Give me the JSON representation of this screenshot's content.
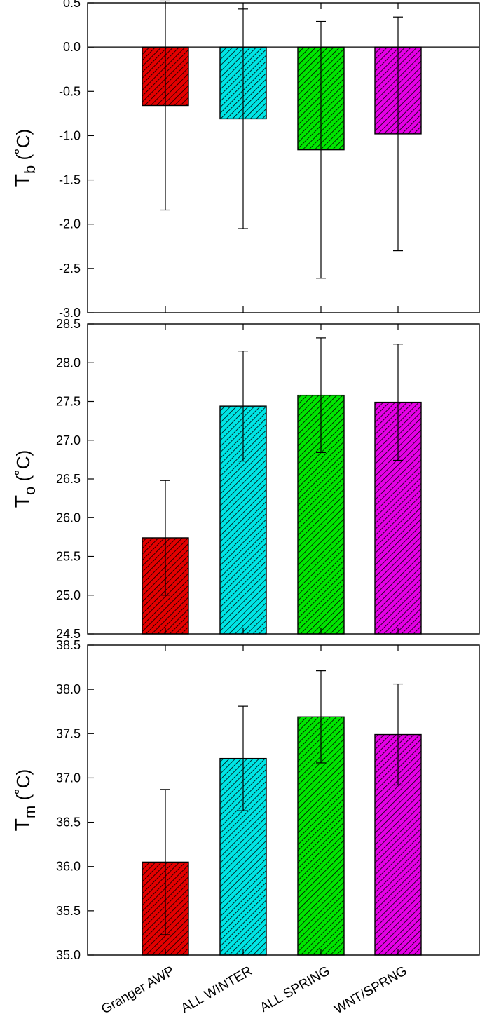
{
  "chart_data": [
    {
      "type": "bar",
      "categories": [
        "Granger AWP",
        "ALL WINTER",
        "ALL SPRING",
        "WNT/SPRNG"
      ],
      "colors": [
        "#e30000",
        "#00e5e5",
        "#00e600",
        "#e600e6"
      ],
      "ylabel_main": "T",
      "ylabel_sub": "b",
      "ylabel_unit": "(˚C)",
      "ylim": [
        -3.0,
        0.5
      ],
      "yticks": [
        "0.5",
        "0.0",
        "-0.5",
        "-1.0",
        "-1.5",
        "-2.0",
        "-2.5",
        "-3.0"
      ],
      "values": [
        -0.66,
        -0.81,
        -1.16,
        -0.98
      ],
      "err_upper": [
        0.52,
        0.43,
        0.29,
        0.34
      ],
      "err_lower": [
        -1.84,
        -2.05,
        -2.61,
        -2.3
      ],
      "zero_line": true
    },
    {
      "type": "bar",
      "categories": [
        "Granger AWP",
        "ALL WINTER",
        "ALL SPRING",
        "WNT/SPRNG"
      ],
      "colors": [
        "#e30000",
        "#00e5e5",
        "#00e600",
        "#e600e6"
      ],
      "ylabel_main": "T",
      "ylabel_sub": "o",
      "ylabel_unit": "(˚C)",
      "ylim": [
        24.5,
        28.5
      ],
      "yticks": [
        "28.5",
        "28.0",
        "27.5",
        "27.0",
        "26.5",
        "26.0",
        "25.5",
        "25.0",
        "24.5"
      ],
      "values": [
        25.74,
        27.44,
        27.58,
        27.49
      ],
      "err_upper": [
        26.48,
        28.15,
        28.32,
        28.24
      ],
      "err_lower": [
        25.0,
        26.73,
        26.84,
        26.74
      ]
    },
    {
      "type": "bar",
      "categories": [
        "Granger AWP",
        "ALL WINTER",
        "ALL SPRING",
        "WNT/SPRNG"
      ],
      "colors": [
        "#e30000",
        "#00e5e5",
        "#00e600",
        "#e600e6"
      ],
      "ylabel_main": "T",
      "ylabel_sub": "m",
      "ylabel_unit": "(˚C)",
      "ylim": [
        35.0,
        38.5
      ],
      "yticks": [
        "38.5",
        "38.0",
        "37.5",
        "37.0",
        "36.5",
        "36.0",
        "35.5",
        "35.0"
      ],
      "values": [
        36.05,
        37.22,
        37.69,
        37.49
      ],
      "err_upper": [
        36.87,
        37.81,
        38.21,
        38.06
      ],
      "err_lower": [
        35.23,
        36.63,
        37.17,
        36.92
      ],
      "xtick_labels": [
        "Granger AWP",
        "ALL WINTER",
        "ALL SPRING",
        "WNT/SPRNG"
      ]
    }
  ]
}
